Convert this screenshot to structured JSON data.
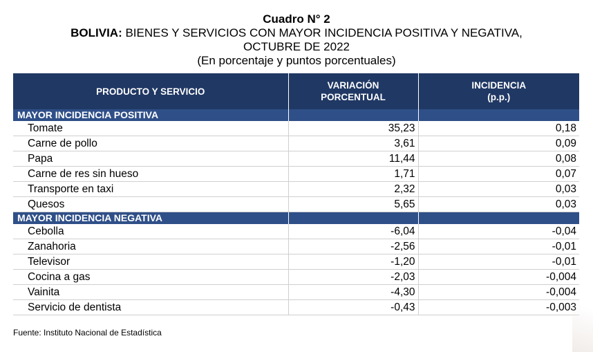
{
  "title": "Cuadro N° 2",
  "subtitle_bold": "BOLIVIA:",
  "subtitle_rest": " BIENES Y SERVICIOS CON MAYOR INCIDENCIA POSITIVA Y NEGATIVA,",
  "subtitle_line2": "OCTUBRE DE 2022",
  "units": "(En porcentaje y puntos porcentuales)",
  "headers": {
    "product": "PRODUCTO Y SERVICIO",
    "variation": "VARIACIÓN PORCENTUAL",
    "incidence_line1": "INCIDENCIA",
    "incidence_line2": "(p.p.)"
  },
  "sections": [
    {
      "label": "MAYOR INCIDENCIA POSITIVA",
      "rows": [
        {
          "product": "Tomate",
          "variation": "35,23",
          "incidence": "0,18"
        },
        {
          "product": "Carne de pollo",
          "variation": "3,61",
          "incidence": "0,09"
        },
        {
          "product": "Papa",
          "variation": "11,44",
          "incidence": "0,08"
        },
        {
          "product": "Carne de res sin hueso",
          "variation": "1,71",
          "incidence": "0,07"
        },
        {
          "product": "Transporte en taxi",
          "variation": "2,32",
          "incidence": "0,03"
        },
        {
          "product": "Quesos",
          "variation": "5,65",
          "incidence": "0,03"
        }
      ]
    },
    {
      "label": "MAYOR INCIDENCIA NEGATIVA",
      "rows": [
        {
          "product": "Cebolla",
          "variation": "-6,04",
          "incidence": "-0,04"
        },
        {
          "product": "Zanahoria",
          "variation": "-2,56",
          "incidence": "-0,01"
        },
        {
          "product": "Televisor",
          "variation": "-1,20",
          "incidence": "-0,01"
        },
        {
          "product": "Cocina a gas",
          "variation": "-2,03",
          "incidence": "-0,004"
        },
        {
          "product": "Vainita",
          "variation": "-4,30",
          "incidence": "-0,004"
        },
        {
          "product": "Servicio de dentista",
          "variation": "-0,43",
          "incidence": "-0,003"
        }
      ]
    }
  ],
  "source": "Fuente: Instituto Nacional de Estadística",
  "colors": {
    "header_bg": "#203864",
    "section_bg": "#2f4f88"
  }
}
